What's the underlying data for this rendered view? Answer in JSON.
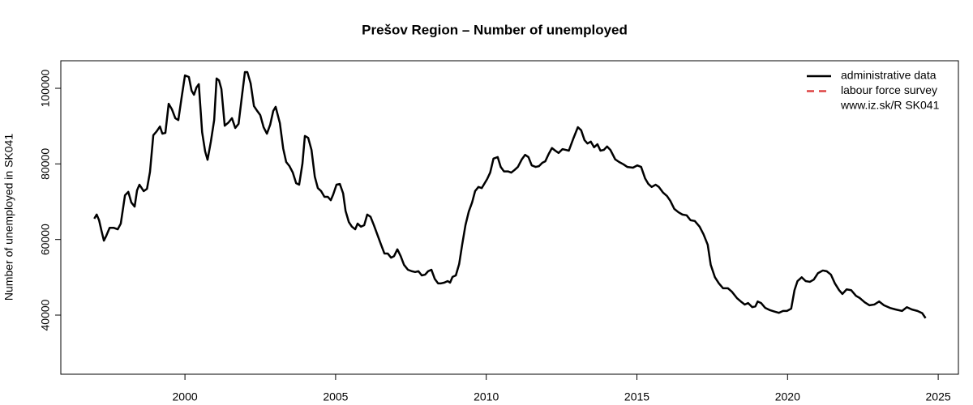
{
  "chart_data": {
    "type": "line",
    "title": "Prešov Region – Number of unemployed",
    "y_label": "Number of unemployed in SK041",
    "annotation": "www.iz.sk/R SK041",
    "legend": "topright",
    "xlim": [
      1995.88,
      2025.67
    ],
    "xticks": [
      2000,
      2005,
      2010,
      2015,
      2020,
      2025
    ],
    "ylim": [
      24360,
      107290
    ],
    "yticks": [
      40000,
      60000,
      80000,
      100000
    ],
    "series": [
      {
        "name": "administrative data",
        "color": "#000000",
        "dashed": false,
        "x": [
          1996.99,
          1997.07,
          1997.15,
          1997.23,
          1997.31,
          1997.39,
          1997.5,
          1997.63,
          1997.77,
          1997.87,
          1998.01,
          1998.12,
          1998.22,
          1998.33,
          1998.41,
          1998.49,
          1998.63,
          1998.74,
          1998.84,
          1998.95,
          1999.06,
          1999.17,
          1999.25,
          1999.35,
          1999.46,
          1999.57,
          1999.68,
          1999.78,
          1999.89,
          2000.0,
          2000.13,
          2000.22,
          2000.3,
          2000.38,
          2000.46,
          2000.57,
          2000.67,
          2000.75,
          2000.86,
          2000.97,
          2001.05,
          2001.13,
          2001.21,
          2001.32,
          2001.45,
          2001.56,
          2001.67,
          2001.78,
          2001.88,
          2001.99,
          2002.07,
          2002.18,
          2002.29,
          2002.4,
          2002.5,
          2002.61,
          2002.72,
          2002.83,
          2002.93,
          2003.01,
          2003.15,
          2003.26,
          2003.36,
          2003.47,
          2003.58,
          2003.69,
          2003.79,
          2003.9,
          2003.98,
          2004.09,
          2004.2,
          2004.31,
          2004.41,
          2004.52,
          2004.63,
          2004.74,
          2004.84,
          2004.92,
          2005.03,
          2005.14,
          2005.25,
          2005.33,
          2005.44,
          2005.54,
          2005.65,
          2005.73,
          2005.84,
          2005.95,
          2006.05,
          2006.16,
          2006.27,
          2006.4,
          2006.51,
          2006.62,
          2006.73,
          2006.84,
          2006.94,
          2007.05,
          2007.16,
          2007.27,
          2007.4,
          2007.53,
          2007.64,
          2007.75,
          2007.86,
          2007.97,
          2008.07,
          2008.18,
          2008.29,
          2008.4,
          2008.5,
          2008.61,
          2008.72,
          2008.8,
          2008.88,
          2008.99,
          2009.1,
          2009.2,
          2009.31,
          2009.42,
          2009.53,
          2009.63,
          2009.74,
          2009.85,
          2010.03,
          2010.13,
          2010.24,
          2010.38,
          2010.48,
          2010.59,
          2010.73,
          2010.83,
          2010.94,
          2011.05,
          2011.18,
          2011.29,
          2011.4,
          2011.51,
          2011.64,
          2011.75,
          2011.86,
          2011.96,
          2012.07,
          2012.18,
          2012.29,
          2012.4,
          2012.53,
          2012.64,
          2012.74,
          2012.88,
          2013.04,
          2013.15,
          2013.26,
          2013.36,
          2013.47,
          2013.58,
          2013.69,
          2013.79,
          2013.9,
          2014.01,
          2014.12,
          2014.28,
          2014.41,
          2014.55,
          2014.68,
          2014.87,
          2015.01,
          2015.14,
          2015.27,
          2015.38,
          2015.49,
          2015.62,
          2015.73,
          2015.87,
          2016.0,
          2016.11,
          2016.24,
          2016.38,
          2016.51,
          2016.65,
          2016.78,
          2016.92,
          2017.08,
          2017.21,
          2017.35,
          2017.45,
          2017.59,
          2017.72,
          2017.86,
          2018.02,
          2018.15,
          2018.32,
          2018.45,
          2018.58,
          2018.69,
          2018.83,
          2018.93,
          2019.01,
          2019.12,
          2019.26,
          2019.42,
          2019.58,
          2019.71,
          2019.85,
          2019.98,
          2020.12,
          2020.23,
          2020.33,
          2020.47,
          2020.6,
          2020.74,
          2020.87,
          2021.01,
          2021.17,
          2021.3,
          2021.44,
          2021.57,
          2021.71,
          2021.82,
          2021.96,
          2022.11,
          2022.27,
          2022.4,
          2022.56,
          2022.72,
          2022.88,
          2023.04,
          2023.2,
          2023.4,
          2023.58,
          2023.8,
          2023.96,
          2024.12,
          2024.31,
          2024.47,
          2024.58
        ],
        "values": [
          65500,
          66600,
          65100,
          62300,
          59700,
          61000,
          63100,
          63100,
          62700,
          64200,
          71700,
          72600,
          69800,
          68700,
          73000,
          74500,
          72800,
          73400,
          77900,
          87600,
          88600,
          89900,
          88000,
          88200,
          95900,
          94400,
          92100,
          91600,
          97600,
          103400,
          103000,
          99400,
          98300,
          100200,
          101100,
          88400,
          83300,
          81100,
          85900,
          91600,
          102600,
          102100,
          99800,
          90100,
          91000,
          92100,
          89500,
          90600,
          97200,
          104300,
          104300,
          101300,
          95300,
          94000,
          92900,
          89700,
          88000,
          90400,
          94000,
          95100,
          90800,
          84100,
          80500,
          79400,
          77700,
          74900,
          74500,
          80100,
          87400,
          86900,
          83700,
          76600,
          73600,
          72800,
          71300,
          71300,
          70400,
          71900,
          74500,
          74700,
          72200,
          67600,
          64600,
          63400,
          62700,
          64200,
          63400,
          63800,
          66600,
          66000,
          63800,
          61000,
          58600,
          56300,
          56300,
          55200,
          55600,
          57400,
          55600,
          53300,
          52000,
          51600,
          51400,
          51600,
          50500,
          50700,
          51600,
          52000,
          49600,
          48400,
          48400,
          48600,
          49000,
          48600,
          50100,
          50500,
          53500,
          58600,
          63800,
          67400,
          69800,
          72800,
          73900,
          73600,
          76000,
          77700,
          81400,
          81800,
          79200,
          78000,
          78000,
          77700,
          78400,
          79200,
          81200,
          82400,
          81800,
          79600,
          79200,
          79400,
          80300,
          80700,
          82600,
          84200,
          83500,
          82900,
          83900,
          83700,
          83500,
          86500,
          89700,
          88900,
          86300,
          85400,
          85900,
          84400,
          85200,
          83500,
          83700,
          84600,
          83700,
          81200,
          80500,
          79900,
          79200,
          79000,
          79600,
          79200,
          76200,
          74700,
          73900,
          74500,
          73900,
          72400,
          71500,
          70200,
          68100,
          67200,
          66600,
          66400,
          65100,
          64900,
          63400,
          61400,
          58600,
          53300,
          50000,
          48400,
          47100,
          47100,
          46200,
          44500,
          43600,
          42800,
          43200,
          42100,
          42300,
          43600,
          43200,
          41900,
          41300,
          40900,
          40600,
          41100,
          41100,
          41700,
          46600,
          49000,
          50000,
          49000,
          48800,
          49400,
          51100,
          51800,
          51600,
          50700,
          48400,
          46600,
          45600,
          46800,
          46600,
          45100,
          44500,
          43400,
          42600,
          42800,
          43600,
          42600,
          41900,
          41500,
          41100,
          42100,
          41500,
          41100,
          40500,
          39200
        ]
      },
      {
        "name": "labour force survey",
        "color": "#dd4444",
        "dashed": true,
        "x": [],
        "values": []
      }
    ]
  }
}
